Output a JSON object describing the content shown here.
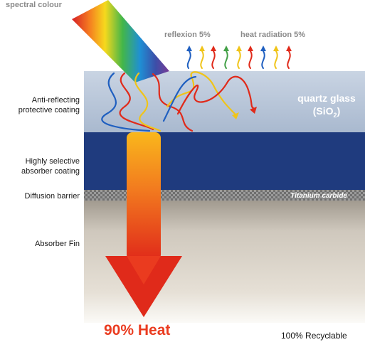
{
  "header": {
    "spectral_label": "spectral colour",
    "reflexion_label": "reflexion  5%",
    "radiation_label": "heat radiation  5%"
  },
  "layers": [
    {
      "label": "Anti-reflecting protective coating",
      "color": "#b8c6d8"
    },
    {
      "label": "Highly selective absorber coating",
      "color": "#1f3b7e"
    },
    {
      "label": "Diffusion barrier",
      "color": "#8a8a8a"
    },
    {
      "label": "Absorber Fin",
      "color": "#c8c0b4"
    }
  ],
  "overlay": {
    "quartz_line1": "quartz glass",
    "quartz_line2": "(SiO",
    "quartz_sub": "2",
    "quartz_close": ")",
    "titanium": "Titanium carbide"
  },
  "footer": {
    "heat": "90% Heat",
    "recycle": "100% Recyclable"
  },
  "colors": {
    "arrow_top": "#f7a81b",
    "arrow_bottom": "#e02a1a",
    "heat_text": "#ea3b1f",
    "navy": "#1f3b7e"
  },
  "icons": [
    "rainbow-beam-icon",
    "heat-arrow-icon",
    "wavy-ray-icon"
  ]
}
